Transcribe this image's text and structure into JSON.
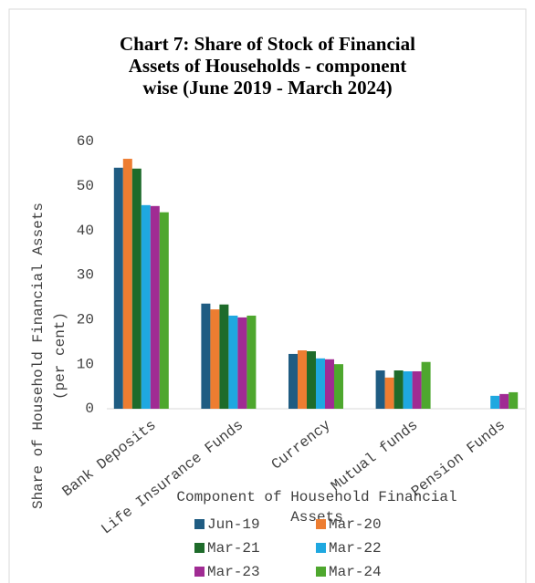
{
  "chart_data": {
    "type": "bar",
    "title": "Chart 7: Share of Stock of Financial Assets of Households - component wise (June 2019 - March 2024)",
    "x_label": "Component of Household Financial Assets",
    "y_label": "Share of Household Financial Assets (per cent)",
    "categories": [
      "Bank Deposits",
      "Life Insurance Funds",
      "Currency",
      "Mutual funds",
      "Pension Funds"
    ],
    "series": [
      {
        "name": "Jun-19",
        "color": "#1f5c82",
        "values": [
          54.1,
          23.6,
          12.3,
          8.6,
          null
        ]
      },
      {
        "name": "Mar-20",
        "color": "#ed7d31",
        "values": [
          56.1,
          22.3,
          13.1,
          7.0,
          null
        ]
      },
      {
        "name": "Mar-21",
        "color": "#1e6b2a",
        "values": [
          53.9,
          23.4,
          12.9,
          8.6,
          null
        ]
      },
      {
        "name": "Mar-22",
        "color": "#1fa8e0",
        "values": [
          45.7,
          20.9,
          11.3,
          8.4,
          2.9
        ]
      },
      {
        "name": "Mar-23",
        "color": "#a02b93",
        "values": [
          45.5,
          20.5,
          11.1,
          8.4,
          3.3
        ]
      },
      {
        "name": "Mar-24",
        "color": "#4ea72e",
        "values": [
          44.1,
          20.9,
          10.0,
          10.5,
          3.7
        ]
      }
    ],
    "ylim": [
      0,
      60
    ],
    "yticks": [
      0,
      10,
      20,
      30,
      40,
      50,
      60
    ],
    "grid": false,
    "legend": "bottom"
  }
}
